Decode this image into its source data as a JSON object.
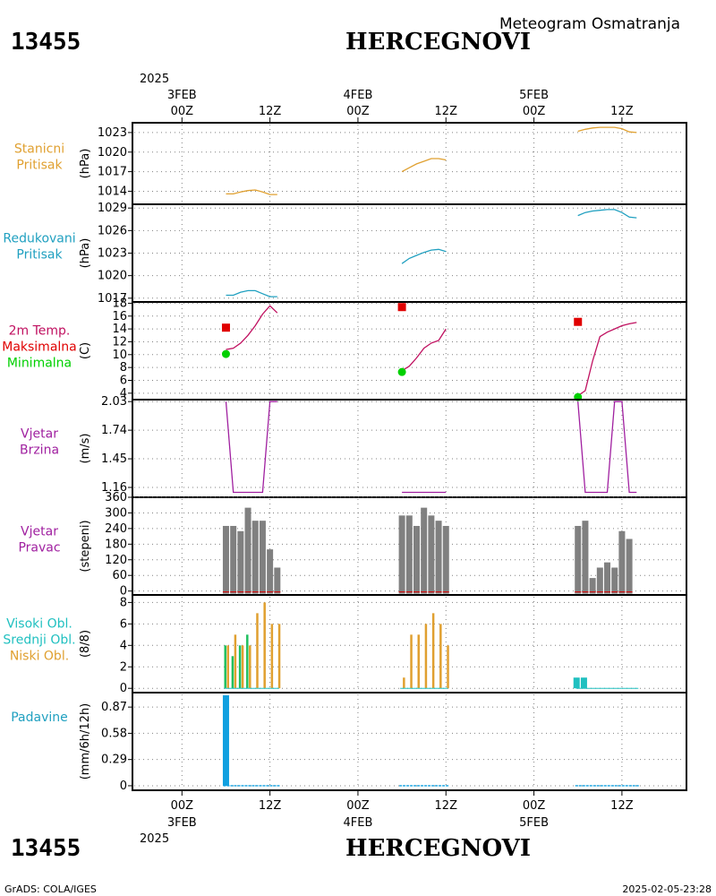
{
  "header": {
    "station_id": "13455",
    "station_name": "HERCEGNOVI",
    "meteogram_title": "Meteogram Osmatranja"
  },
  "footer": {
    "station_id": "13455",
    "station_name": "HERCEGNOVI",
    "software": "GrADS: COLA/IGES",
    "timestamp": "2025-02-05-23:28"
  },
  "colors": {
    "pressure": "#e0a030",
    "reduced": "#20a0c0",
    "temp": "#c01060",
    "max": "#e00000",
    "min": "#00d000",
    "wind": "#a020a0",
    "bars": "#808080",
    "high_cloud": "#20c0c0",
    "mid_cloud": "#20c060",
    "low_cloud": "#e0a030",
    "precip": "#10a0e0"
  },
  "time_axis": {
    "top_year": "2025",
    "bottom_year": "2025",
    "ticks": [
      {
        "t": 0,
        "label": "00Z",
        "date": "3FEB"
      },
      {
        "t": 12,
        "label": "12Z"
      },
      {
        "t": 24,
        "label": "00Z",
        "date": "4FEB"
      },
      {
        "t": 36,
        "label": "12Z"
      },
      {
        "t": 48,
        "label": "00Z",
        "date": "5FEB"
      },
      {
        "t": 60,
        "label": "12Z"
      }
    ]
  },
  "chart_data": [
    {
      "type": "line",
      "row_label": [
        "Stanicni",
        "Pritisak"
      ],
      "ylabel": "(hPa)",
      "ylim": [
        1012,
        1024.5
      ],
      "yticks": [
        1014,
        1017,
        1020,
        1023
      ],
      "segments": [
        {
          "x": [
            6,
            7,
            8,
            9,
            10,
            11,
            12,
            13
          ],
          "y": [
            1013.6,
            1013.6,
            1013.9,
            1014.1,
            1014.2,
            1013.9,
            1013.5,
            1013.5
          ]
        },
        {
          "x": [
            30,
            31,
            32,
            33,
            34,
            35,
            36
          ],
          "y": [
            1017.0,
            1017.6,
            1018.2,
            1018.6,
            1019.0,
            1019.0,
            1018.8
          ]
        },
        {
          "x": [
            54,
            55,
            56,
            57,
            58,
            59,
            60,
            61,
            62
          ],
          "y": [
            1023.2,
            1023.5,
            1023.7,
            1023.8,
            1023.8,
            1023.8,
            1023.6,
            1023.1,
            1023.0
          ]
        }
      ]
    },
    {
      "type": "line",
      "row_label": [
        "Redukovani",
        "Pritisak"
      ],
      "ylabel": "(hPa)",
      "ylim": [
        1016.5,
        1029.5
      ],
      "yticks": [
        1017,
        1020,
        1023,
        1026,
        1029
      ],
      "segments": [
        {
          "x": [
            6,
            7,
            8,
            9,
            10,
            11,
            12,
            13
          ],
          "y": [
            1017.4,
            1017.4,
            1017.8,
            1018.0,
            1018.0,
            1017.6,
            1017.2,
            1017.2
          ]
        },
        {
          "x": [
            30,
            31,
            32,
            33,
            34,
            35,
            36
          ],
          "y": [
            1021.6,
            1022.3,
            1022.7,
            1023.1,
            1023.4,
            1023.5,
            1023.2
          ]
        },
        {
          "x": [
            54,
            55,
            56,
            57,
            58,
            59,
            60,
            61,
            62
          ],
          "y": [
            1028.0,
            1028.4,
            1028.6,
            1028.7,
            1028.8,
            1028.8,
            1028.4,
            1027.8,
            1027.7
          ]
        }
      ]
    },
    {
      "type": "line",
      "row_label": [
        "2m Temp.",
        "Maksimalna",
        "Minimalna"
      ],
      "ylabel": "(C)",
      "ylim": [
        3,
        18.2
      ],
      "yticks": [
        4,
        6,
        8,
        10,
        12,
        14,
        16,
        18
      ],
      "segments": [
        {
          "x": [
            6,
            7,
            8,
            9,
            10,
            11,
            12,
            13
          ],
          "y": [
            10.8,
            11.0,
            11.8,
            13.0,
            14.5,
            16.3,
            17.6,
            16.5
          ]
        },
        {
          "x": [
            30,
            31,
            32,
            33,
            34,
            35,
            36
          ],
          "y": [
            7.5,
            8.2,
            9.5,
            11.0,
            11.8,
            12.2,
            14.0
          ]
        },
        {
          "x": [
            54,
            55,
            56,
            57,
            58,
            59,
            60,
            61,
            62
          ],
          "y": [
            3.6,
            4.4,
            9.0,
            12.8,
            13.5,
            14.0,
            14.5,
            14.8,
            15.0
          ]
        }
      ],
      "maxima": [
        {
          "x": 6,
          "y": 14.2
        },
        {
          "x": 30,
          "y": 17.4
        },
        {
          "x": 54,
          "y": 15.1
        }
      ],
      "minima": [
        {
          "x": 6,
          "y": 10.1
        },
        {
          "x": 30,
          "y": 7.3
        },
        {
          "x": 54,
          "y": 3.4
        }
      ]
    },
    {
      "type": "line",
      "row_label": [
        "Vjetar",
        "Brzina"
      ],
      "ylabel": "(m/s)",
      "ylim": [
        1.06,
        2.05
      ],
      "yticks": [
        1.16,
        1.45,
        1.74,
        2.03
      ],
      "segments": [
        {
          "x": [
            6,
            7,
            8,
            9,
            10,
            11,
            12,
            13
          ],
          "y": [
            2.03,
            1.11,
            1.11,
            1.11,
            1.11,
            1.11,
            2.03,
            2.03
          ]
        },
        {
          "x": [
            30,
            31,
            32,
            33,
            34,
            35,
            36
          ],
          "y": [
            1.11,
            1.11,
            1.11,
            1.11,
            1.11,
            1.11,
            1.11
          ]
        },
        {
          "x": [
            54,
            55,
            56,
            57,
            58,
            59,
            60,
            61,
            62
          ],
          "y": [
            2.03,
            1.11,
            1.11,
            1.11,
            1.11,
            2.03,
            2.03,
            1.11,
            1.11
          ]
        }
      ]
    },
    {
      "type": "bar",
      "row_label": [
        "Vjetar",
        "Pravac"
      ],
      "ylabel": "(stepeni)",
      "ylim": [
        -15,
        360
      ],
      "yticks": [
        0,
        60,
        120,
        180,
        240,
        300,
        360
      ],
      "x": [
        6,
        7,
        8,
        9,
        10,
        11,
        12,
        13,
        30,
        31,
        32,
        33,
        34,
        35,
        36,
        54,
        55,
        56,
        57,
        58,
        59,
        60,
        61
      ],
      "values": [
        250,
        250,
        230,
        320,
        270,
        270,
        160,
        90,
        290,
        290,
        250,
        320,
        290,
        270,
        250,
        250,
        270,
        50,
        90,
        110,
        90,
        230,
        200
      ]
    },
    {
      "type": "bar",
      "row_label": [
        "Visoki Obl.",
        "Srednji Obl.",
        "Niski Obl."
      ],
      "ylabel": "(8/8)",
      "ylim": [
        -0.4,
        8.7
      ],
      "yticks": [
        0,
        2,
        4,
        6,
        8
      ],
      "series": [
        {
          "key": "high",
          "x": [
            54,
            55
          ],
          "values": [
            1,
            1
          ]
        },
        {
          "key": "mid",
          "x": [
            6,
            7,
            8,
            9
          ],
          "values": [
            4,
            3,
            4,
            5
          ]
        },
        {
          "key": "low",
          "x": [
            6,
            7,
            8,
            9,
            10,
            11,
            12,
            13,
            30,
            31,
            32,
            33,
            34,
            35,
            36
          ],
          "values": [
            4,
            5,
            4,
            4,
            7,
            8,
            6,
            6,
            1,
            5,
            5,
            6,
            7,
            6,
            4
          ]
        }
      ]
    },
    {
      "type": "bar",
      "row_label": [
        "Padavine"
      ],
      "ylabel": "(mm/6h/12h)",
      "ylim": [
        -0.05,
        1.03
      ],
      "yticks": [
        0,
        0.29,
        0.58,
        0.87
      ],
      "x": [
        6
      ],
      "values": [
        1.0
      ],
      "baseline": [
        {
          "from": 6,
          "to": 13
        },
        {
          "from": 30,
          "to": 36
        },
        {
          "from": 54,
          "to": 62
        }
      ]
    }
  ]
}
